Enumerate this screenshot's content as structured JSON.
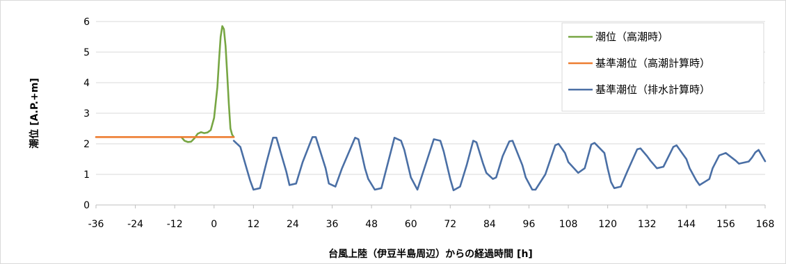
{
  "chart_data": {
    "type": "line",
    "title": "",
    "xlabel": "台風上陸（伊豆半島周辺）からの経過時間 [h]",
    "ylabel": "潮位 [A.P.+m]",
    "xlim": [
      -36,
      168
    ],
    "ylim": [
      0,
      6
    ],
    "x_ticks": [
      "-36",
      "-24",
      "-12",
      "0",
      "12",
      "24",
      "36",
      "48",
      "60",
      "72",
      "84",
      "96",
      "108",
      "120",
      "132",
      "144",
      "156",
      "168"
    ],
    "y_ticks": [
      "0",
      "1",
      "2",
      "3",
      "4",
      "5",
      "6"
    ],
    "grid": "horizontal",
    "legend_position": "top-right",
    "series": [
      {
        "name": "潮位（高潮時）",
        "color": "#77a643",
        "x": [
          -10,
          -9,
          -8,
          -7,
          -6,
          -5,
          -4,
          -3,
          -2,
          -1,
          0,
          1,
          1.5,
          2,
          2.5,
          3,
          3.5,
          4,
          4.5,
          5,
          5.5,
          6
        ],
        "y": [
          2.22,
          2.1,
          2.06,
          2.07,
          2.18,
          2.33,
          2.38,
          2.35,
          2.37,
          2.45,
          2.85,
          3.85,
          4.7,
          5.5,
          5.85,
          5.75,
          5.2,
          4.3,
          3.3,
          2.5,
          2.3,
          2.22
        ]
      },
      {
        "name": "基準潮位（高潮計算時）",
        "color": "#ed7d31",
        "x": [
          -36,
          6
        ],
        "y": [
          2.22,
          2.22
        ]
      },
      {
        "name": "基準潮位（排水計算時）",
        "color": "#4a6fa5",
        "x": [
          6,
          8,
          11,
          12,
          14,
          16,
          18,
          19,
          22,
          23,
          25,
          27,
          30,
          31,
          34,
          35,
          37,
          39,
          43,
          44,
          46,
          47,
          49,
          51,
          55,
          57,
          58,
          60,
          62,
          67,
          69,
          70,
          72,
          73,
          75,
          77,
          79,
          80,
          82,
          83,
          85,
          86,
          88,
          90,
          91,
          94,
          95,
          97,
          98,
          101,
          104,
          105,
          107,
          108,
          111,
          113,
          115,
          116,
          119,
          120,
          121,
          122,
          124,
          126,
          129,
          130,
          132,
          133,
          135,
          137,
          140,
          141,
          144,
          145,
          147,
          148,
          151,
          152,
          154,
          156,
          159,
          160,
          163,
          164,
          165,
          166,
          168
        ],
        "y": [
          2.1,
          1.9,
          0.8,
          0.5,
          0.55,
          1.4,
          2.2,
          2.2,
          1.1,
          0.65,
          0.7,
          1.4,
          2.22,
          2.22,
          1.2,
          0.7,
          0.6,
          1.2,
          2.2,
          2.15,
          1.2,
          0.85,
          0.5,
          0.55,
          2.2,
          2.1,
          1.8,
          0.9,
          0.5,
          2.15,
          2.1,
          1.75,
          0.85,
          0.48,
          0.6,
          1.3,
          2.1,
          2.05,
          1.35,
          1.05,
          0.85,
          0.9,
          1.6,
          2.08,
          2.1,
          1.3,
          0.9,
          0.5,
          0.5,
          1.0,
          1.95,
          2.0,
          1.7,
          1.4,
          1.05,
          1.2,
          1.98,
          2.03,
          1.7,
          1.2,
          0.75,
          0.55,
          0.6,
          1.1,
          1.82,
          1.85,
          1.6,
          1.45,
          1.2,
          1.25,
          1.9,
          1.95,
          1.5,
          1.2,
          0.8,
          0.65,
          0.85,
          1.2,
          1.62,
          1.7,
          1.45,
          1.35,
          1.42,
          1.55,
          1.72,
          1.8,
          1.43
        ]
      }
    ]
  }
}
